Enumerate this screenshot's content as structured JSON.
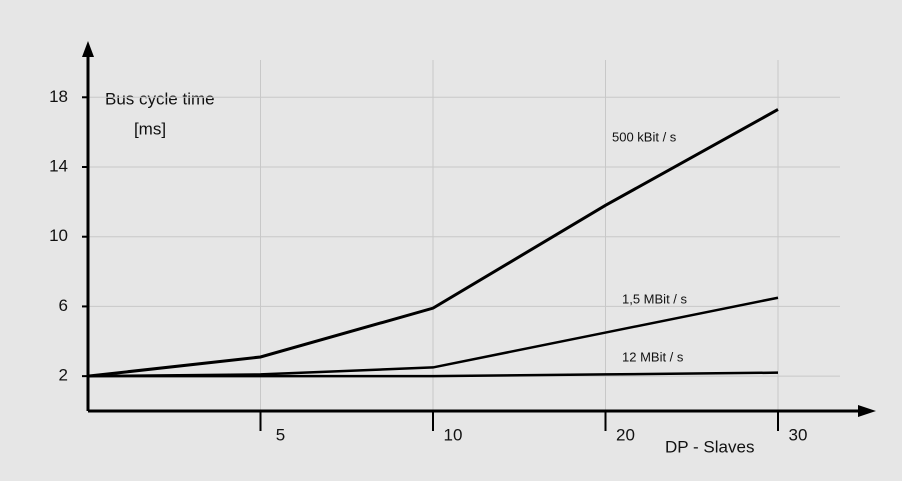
{
  "chart_data": {
    "type": "line",
    "y_label": [
      "Bus cycle time",
      "[ms]"
    ],
    "x_label": "DP - Slaves",
    "categories": [
      null,
      "5",
      "10",
      "20",
      "30"
    ],
    "series": [
      {
        "name": "500 kBit / s",
        "color": "#000000",
        "values": [
          2,
          3.1,
          5.9,
          11.8,
          17.3
        ]
      },
      {
        "name": "1,5 MBit / s",
        "color": "#000000",
        "values": [
          2,
          2.1,
          2.5,
          4.5,
          6.5
        ]
      },
      {
        "name": "12 MBit / s",
        "color": "#000000",
        "values": [
          2,
          2,
          2,
          2.1,
          2.2
        ]
      }
    ],
    "ylim": [
      0,
      21
    ],
    "yticks": [
      2,
      6,
      10,
      14,
      18
    ],
    "grid": true
  }
}
